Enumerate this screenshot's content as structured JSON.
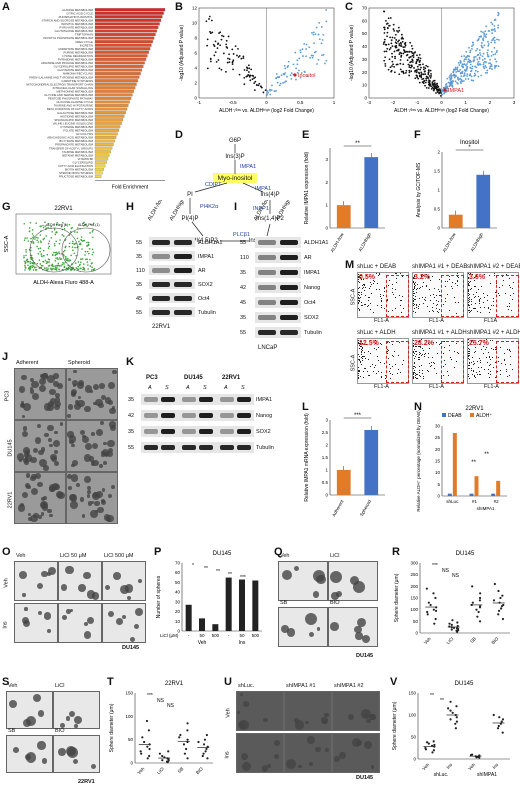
{
  "panel_labels": [
    "A",
    "B",
    "C",
    "D",
    "E",
    "F",
    "G",
    "H",
    "I",
    "J",
    "K",
    "L",
    "M",
    "N",
    "O",
    "P",
    "Q",
    "R",
    "S",
    "T",
    "U",
    "V"
  ],
  "panelA": {
    "pathways": [
      "ALANINE METABOLISM",
      "CITRIC ACID CYCLE",
      "PHOSPHATIDYLINOSITOL",
      "STARCH AND SUCROSE METABOLISM",
      "INOSITOL METABOLISM",
      "PYRUVATE METABOLISM",
      "GLUTATHIONE METABOLISM",
      "TRIPTOPHAN",
      "INOSITOL PHOSPHATE METABOLISM",
      "UREA CYCLE",
      "INCRETIN",
      "ASPARTATE METABOLISM",
      "PURINE METABOLISM",
      "LYSINE DEGRADATION",
      "PYRIMIDINE METABOLISM",
      "ARGININE AND PROLINE METABOLISM",
      "GLYCEROLIPID METABOLISM",
      "GLUTAMATE METABOLISM",
      "AMMONIA RECYCLING",
      "PHENYLALANINE AND TYROSINE METABOLISM",
      "CARNITINE SYNTHESIS",
      "MITOCHONDRIAL ELECTRON TRANSPORT CHAIN",
      "INTRACELLULAR SIGNALLING",
      "METHIONINE METABOLISM",
      "GLYCINE AND SERINE METABOLISM",
      "PENTOSE PHOSPHATE PATHWAY",
      "GLUCOSE-ALANINE CYCLE",
      "TAURINE AND HYPOTAURINE",
      "BETA OXIDATION OF FATTY ACIDS",
      "GALACTOSE METABOLISM",
      "HISTIDINE METABOLISM",
      "SPHINGOLIPID METABOLISM",
      "VALINE LEUCINE ISOLEUCINE",
      "CYSTEINE METABOLISM",
      "FOLATE METABOLISM",
      "GLYCOLYSIS",
      "ARACHIDONIC ACID METABOLISM",
      "BUTYRATE METABOLISM",
      "PROPANOATE METABOLISM",
      "TRANSFER OF ACETYL GROUPS",
      "TAURINE METABOLISM",
      "BETAINE METABOLISM",
      "VITAMIN B6",
      "GLYCEROLIPID",
      "FATTY ACID ELONGATION",
      "BIOTIN METABOLISM",
      "STEROID BIOSYNTHESIS",
      "FRUCTOSE METABOLISM"
    ],
    "xlabel": "Fold Enrichment"
  },
  "panelB": {
    "xlabel": "ALDH⁻⁄ˡᵒʷ vs. ALDHʰⁱᵍʰ (log2 Fold Change)",
    "ylabel": "-log10 (Adjusted P value)",
    "highlight": "Inositol",
    "xticks": [
      "-1",
      "-0.5",
      "0",
      "0.5",
      "1"
    ],
    "yticks": [
      "0",
      "2",
      "4",
      "6",
      "8",
      "10",
      "12"
    ]
  },
  "panelC": {
    "xlabel": "ALDH⁻⁄ˡᵒʷ vs. ALDHʰⁱᵍʰ (log2 Fold Change)",
    "ylabel": "-log10 (Adjusted P value)",
    "highlight": "IMPA1",
    "xticks": [
      "-3",
      "-2",
      "-1",
      "0",
      "1",
      "2",
      "3"
    ],
    "yticks": [
      "0",
      "10",
      "20",
      "30",
      "40",
      "50",
      "60",
      "70"
    ]
  },
  "panelD": {
    "nodes": [
      "G6P",
      "Ins(3)P",
      "Myo-inositol",
      "PI",
      "PI(4)P",
      "PI(4,5)P2",
      "Ins(1,4,5)P3",
      "Ins(1,4)P2",
      "Ins(4)P"
    ],
    "enzymes": [
      "IMPA1",
      "CDIPT",
      "PI4K2α",
      "PLCβ1",
      "INPP1",
      "IMPA1"
    ]
  },
  "panelE": {
    "ylabel": "Relative IMPA1 expression (fold)",
    "sig": "**",
    "chart_data": {
      "type": "bar",
      "categories": [
        "ALDH-/low",
        "ALDHhigh"
      ],
      "values": [
        1.0,
        3.1
      ],
      "ylim": [
        0,
        3.5
      ],
      "yticks": [
        "0",
        "1",
        "2",
        "3"
      ]
    }
  },
  "panelF": {
    "title": "Inositol",
    "ylabel": "Analysis by GC/TOF-MS",
    "sig": "*",
    "chart_data": {
      "type": "bar",
      "categories": [
        "ALDH-/low",
        "ALDHhigh"
      ],
      "values": [
        0.35,
        1.4
      ],
      "ylim": [
        0,
        2
      ],
      "yticks": [
        "0",
        "0.5",
        "1",
        "1.5",
        "2"
      ]
    }
  },
  "panelG": {
    "title": "22RV1",
    "gate1": "ALDH Neg (1)",
    "gate2": "ALDH Pos (1)",
    "xlabel": "ALDH-Alexa Fluro 488-A",
    "ylabel": "SSC-A"
  },
  "panelH": {
    "cols": [
      "ALDH-/low",
      "ALDHhigh"
    ],
    "rows": [
      {
        "kda": "55",
        "name": "ALDH1A1"
      },
      {
        "kda": "35",
        "name": "IMPA1"
      },
      {
        "kda": "110",
        "name": "AR"
      },
      {
        "kda": "35",
        "name": "SOX2"
      },
      {
        "kda": "45",
        "name": "Oct4"
      },
      {
        "kda": "55",
        "name": "Tubulin"
      }
    ],
    "cell_line": "22RV1"
  },
  "panelI": {
    "cols": [
      "ALDH-/low",
      "ALDHhigh"
    ],
    "rows": [
      {
        "kda": "55",
        "name": "ALDH1A1"
      },
      {
        "kda": "110",
        "name": "AR"
      },
      {
        "kda": "35",
        "name": "IMPA1"
      },
      {
        "kda": "42",
        "name": "Nanog"
      },
      {
        "kda": "45",
        "name": "Oct4"
      },
      {
        "kda": "35",
        "name": "SOX2"
      },
      {
        "kda": "55",
        "name": "Tubulin"
      }
    ],
    "cell_line": "LNCaP"
  },
  "panelJ": {
    "cols": [
      "Adherent",
      "Spheroid"
    ],
    "rows": [
      "PC3",
      "DU145",
      "22RV1"
    ]
  },
  "panelK": {
    "groups": [
      "PC3",
      "DU145",
      "22RV1"
    ],
    "lanes": [
      "A",
      "S",
      "A",
      "S",
      "A",
      "S"
    ],
    "rows": [
      {
        "kda": "35",
        "name": "IMPA1"
      },
      {
        "kda": "42",
        "name": "Nanog"
      },
      {
        "kda": "35",
        "name": "SOX2"
      },
      {
        "kda": "55",
        "name": "Tubulin"
      }
    ]
  },
  "panelL": {
    "ylabel": "Relative IMPA1 mRNA expression (fold)",
    "sig": "***",
    "chart_data": {
      "type": "bar",
      "categories": [
        "Adherent",
        "Spheroid"
      ],
      "values": [
        1.0,
        2.6
      ],
      "ylim": [
        0,
        3
      ],
      "yticks": [
        "0",
        "0.5",
        "1",
        "1.5",
        "2",
        "2.5",
        "3"
      ]
    }
  },
  "panelM": {
    "titles": [
      "shLuc + DEAB",
      "shIMPA1 #1 + DEAB",
      "shIMPA1 #2 + DEAB",
      "shLuc + ALDH",
      "shIMPA1 #1 + ALDH",
      "shIMPA1 #2 + ALDH"
    ],
    "pcts": [
      "0.5%",
      "3.2%",
      "3.6%",
      "12.5%",
      "28.2%",
      "25.7%"
    ],
    "xlabels": [
      "FL1-A",
      "FL1-A",
      "FL1A",
      "FL1-A",
      "FL1-A",
      "FL1-A"
    ],
    "ylabel": "SSC-A",
    "gate": "P3"
  },
  "panelN": {
    "title": "22RV1",
    "legend": [
      "DEAB",
      "ALDH⁺"
    ],
    "ylabel": "Relative ALDH⁺ percentage (normalized by DEAB)",
    "xgroup": "shIMPA1",
    "sig": [
      "**",
      "**"
    ],
    "chart_data": {
      "type": "bar",
      "categories": [
        "shLuc.",
        "#1",
        "#2"
      ],
      "series": [
        {
          "name": "DEAB",
          "values": [
            1,
            1,
            1
          ]
        },
        {
          "name": "ALDH⁺",
          "values": [
            27,
            8.5,
            6.5
          ]
        }
      ],
      "ylim": [
        0,
        30
      ],
      "yticks": [
        "0",
        "5",
        "10",
        "15",
        "20",
        "25",
        "30"
      ]
    }
  },
  "panelO": {
    "cols": [
      "Veh",
      "LiCl 50 μM",
      "LiCl 500 μM"
    ],
    "rows": [
      "Veh",
      "Ins"
    ],
    "cell_line": "DU145"
  },
  "panelP": {
    "title": "DU145",
    "ylabel": "Number of spheres",
    "licl_label": "LiCl (μM)",
    "groups": [
      "Veh",
      "Ins"
    ],
    "sig": [
      "*",
      "**",
      "**",
      "**",
      "***"
    ],
    "chart_data": {
      "type": "bar",
      "categories": [
        "-",
        "50",
        "500",
        "-",
        "50",
        "500"
      ],
      "values": [
        27,
        13,
        7,
        55,
        53,
        52
      ],
      "ylim": [
        0,
        70
      ],
      "yticks": [
        "0",
        "10",
        "20",
        "30",
        "40",
        "50",
        "60",
        "70"
      ]
    }
  },
  "panelQ": {
    "cols": [
      "Veh",
      "LiCl"
    ],
    "rows2": [
      "SB",
      "BIO"
    ],
    "cell_line": "DU145"
  },
  "panelR": {
    "title": "DU145",
    "ylabel": "Sphere diameter (μm)",
    "sig": [
      "***",
      "NS",
      "NS"
    ],
    "chart_data": {
      "type": "scatter",
      "categories": [
        "Veh",
        "LiCl",
        "SB",
        "BIO"
      ],
      "ylim": [
        0,
        300
      ],
      "yticks": [
        "0",
        "50",
        "100",
        "150",
        "200",
        "250",
        "300"
      ],
      "series": [
        {
          "name": "Veh",
          "values": [
            40,
            60,
            80,
            90,
            95,
            100,
            110,
            120,
            130,
            150,
            170,
            190
          ]
        },
        {
          "name": "LiCl",
          "values": [
            5,
            10,
            12,
            15,
            18,
            20,
            22,
            25,
            28,
            30,
            35,
            40,
            45,
            55
          ]
        },
        {
          "name": "SB",
          "values": [
            50,
            70,
            90,
            100,
            110,
            115,
            120,
            130,
            140,
            150,
            170,
            200
          ]
        },
        {
          "name": "BIO",
          "values": [
            60,
            80,
            95,
            105,
            115,
            120,
            130,
            140,
            150,
            160,
            180,
            210
          ]
        }
      ]
    }
  },
  "panelS": {
    "cols": [
      "Veh",
      "LiCl"
    ],
    "rows2": [
      "SB",
      "BIO"
    ],
    "cell_line": "22RV1"
  },
  "panelT": {
    "title": "22RV1",
    "ylabel": "Sphere diameter (μm)",
    "sig": [
      "***",
      "NS",
      "NS"
    ],
    "chart_data": {
      "type": "scatter",
      "categories": [
        "Veh",
        "LiCl",
        "SB",
        "BIO"
      ],
      "ylim": [
        0,
        150
      ],
      "yticks": [
        "0",
        "50",
        "100",
        "150"
      ],
      "series": [
        {
          "name": "Veh",
          "values": [
            10,
            15,
            20,
            25,
            30,
            35,
            40,
            45,
            55,
            70,
            90
          ]
        },
        {
          "name": "LiCl",
          "values": [
            2,
            3,
            5,
            6,
            8,
            10,
            12,
            15,
            20,
            25
          ]
        },
        {
          "name": "SB",
          "values": [
            10,
            20,
            30,
            40,
            45,
            50,
            55,
            60,
            70,
            85
          ]
        },
        {
          "name": "BIO",
          "values": [
            10,
            15,
            20,
            25,
            30,
            35,
            40,
            45,
            50,
            60
          ]
        }
      ]
    }
  },
  "panelU": {
    "cols": [
      "shLuc.",
      "shIMPA1 #1",
      "shIMPA1 #2"
    ],
    "rows": [
      "Veh",
      "Ins"
    ],
    "cell_line": "DU145"
  },
  "panelV": {
    "title": "DU145",
    "ylabel": "Sphere diameter (μm)",
    "sig": [
      "**",
      "**"
    ],
    "groups": [
      "shLuc.",
      "shIMPA1"
    ],
    "chart_data": {
      "type": "scatter",
      "categories": [
        "Veh",
        "Ins",
        "Veh",
        "Ins"
      ],
      "ylim": [
        0,
        150
      ],
      "yticks": [
        "0",
        "50",
        "100",
        "150"
      ],
      "series": [
        {
          "name": "shLuc Veh",
          "values": [
            15,
            20,
            22,
            25,
            28,
            30,
            32,
            35,
            38,
            40
          ]
        },
        {
          "name": "shLuc Ins",
          "values": [
            70,
            80,
            85,
            90,
            95,
            100,
            105,
            110,
            115,
            120,
            130
          ]
        },
        {
          "name": "shIMPA1 Veh",
          "values": [
            3,
            4,
            5,
            6,
            7,
            8,
            9,
            10
          ]
        },
        {
          "name": "shIMPA1 Ins",
          "values": [
            60,
            70,
            75,
            80,
            85,
            90,
            95,
            100
          ]
        }
      ]
    }
  },
  "colors": {
    "orange": "#e07b2a",
    "blue": "#4472c4",
    "red": "#d0211f",
    "green": "#3aa53a",
    "black": "#111111"
  }
}
